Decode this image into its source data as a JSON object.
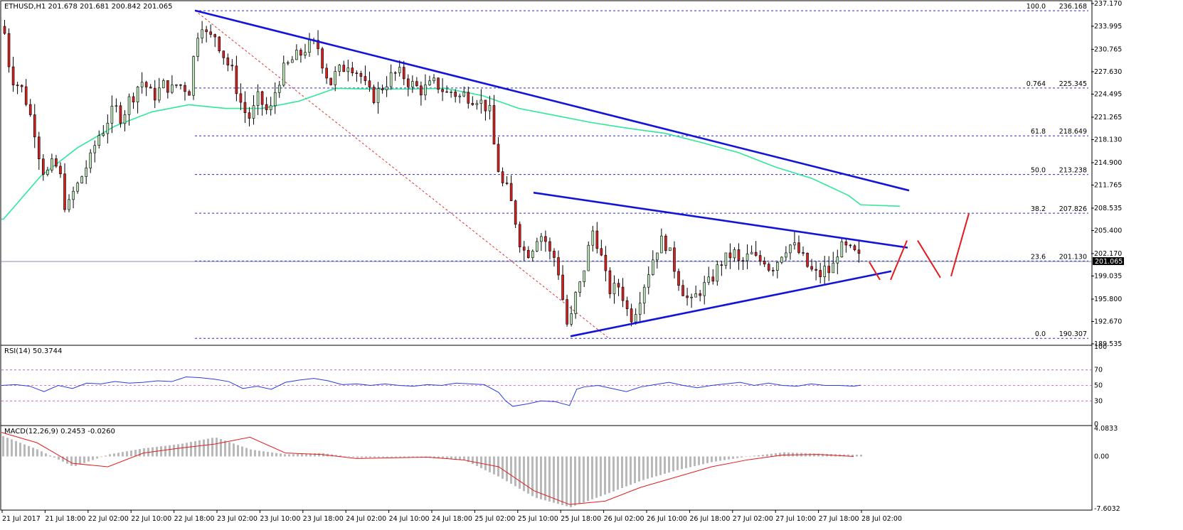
{
  "main_panel": {
    "title": "ETHUSD,H1  201.678 201.681 200.842 201.065",
    "current_price": "201.065",
    "current_price_value": 201.065
  },
  "rsi_panel": {
    "title": "RSI(14) 50.3744",
    "levels": [
      30,
      50,
      70
    ]
  },
  "macd_panel": {
    "title": "MACD(12,26,9) 0.2453 -0.0260"
  },
  "colors": {
    "bull_candle": "#b7e3b4",
    "bear_candle": "#d42222",
    "ma_line": "#2ee89a",
    "trendline": "#1414d8",
    "fib_line": "#2a2ad2",
    "fib_diagonal": "#e03030",
    "scenario": "#e21c1c",
    "rsi_line": "#2a3ce0",
    "level_line": "#c050c0",
    "macd_hist": "#b9b9b9",
    "macd_signal": "#e21c1c"
  },
  "chart_data": [
    {
      "type": "candlestick",
      "symbol": "ETHUSD",
      "timeframe": "H1",
      "ylim": [
        189.535,
        237.17
      ],
      "y_ticks": [
        "237.170",
        "233.995",
        "230.765",
        "227.630",
        "224.495",
        "221.265",
        "218.130",
        "214.900",
        "211.765",
        "208.535",
        "205.400",
        "202.170",
        "199.035",
        "195.800",
        "192.670",
        "189.535"
      ],
      "x_ticks": [
        "21 Jul 2017",
        "21 Jul 18:00",
        "22 Jul 02:00",
        "22 Jul 10:00",
        "22 Jul 18:00",
        "23 Jul 02:00",
        "23 Jul 10:00",
        "23 Jul 18:00",
        "24 Jul 02:00",
        "24 Jul 10:00",
        "24 Jul 18:00",
        "25 Jul 02:00",
        "25 Jul 10:00",
        "25 Jul 18:00",
        "26 Jul 02:00",
        "26 Jul 10:00",
        "26 Jul 18:00",
        "27 Jul 02:00",
        "27 Jul 10:00",
        "27 Jul 18:00",
        "28 Jul 02:00"
      ],
      "fibonacci": [
        {
          "label": "100.0",
          "value": 236.168,
          "value_text": "236.168"
        },
        {
          "label": "0.764",
          "value": 225.345,
          "value_text": "225.345"
        },
        {
          "label": "61.8",
          "value": 218.649,
          "value_text": "218.649"
        },
        {
          "label": "50.0",
          "value": 213.238,
          "value_text": "213.238"
        },
        {
          "label": "38.2",
          "value": 207.826,
          "value_text": "207.826"
        },
        {
          "label": "23.6",
          "value": 201.13,
          "value_text": "201.130"
        },
        {
          "label": "0.0",
          "value": 190.307,
          "value_text": "190.307"
        }
      ],
      "close_path": [
        [
          0,
          233.0
        ],
        [
          5,
          227.0
        ],
        [
          10,
          226.0
        ],
        [
          15,
          225.0
        ],
        [
          20,
          222.0
        ],
        [
          25,
          219.0
        ],
        [
          30,
          214.0
        ],
        [
          35,
          213.5
        ],
        [
          40,
          215.0
        ],
        [
          45,
          213.0
        ],
        [
          50,
          207.8
        ],
        [
          55,
          210.5
        ],
        [
          60,
          212.0
        ],
        [
          65,
          214.0
        ],
        [
          70,
          215.5
        ],
        [
          75,
          218.5
        ],
        [
          80,
          219.5
        ],
        [
          85,
          221.5
        ],
        [
          90,
          222.5
        ],
        [
          95,
          221.0
        ],
        [
          100,
          223.5
        ],
        [
          105,
          224.5
        ],
        [
          110,
          226.5
        ],
        [
          115,
          225.5
        ],
        [
          120,
          224.0
        ],
        [
          125,
          225.0
        ],
        [
          130,
          226.0
        ],
        [
          135,
          225.0
        ],
        [
          140,
          226.0
        ],
        [
          145,
          225.5
        ],
        [
          150,
          225.0
        ],
        [
          155,
          232.5
        ],
        [
          160,
          234.5
        ],
        [
          165,
          232.0
        ],
        [
          170,
          233.0
        ],
        [
          175,
          231.0
        ],
        [
          180,
          229.0
        ],
        [
          185,
          227.5
        ],
        [
          190,
          224.0
        ],
        [
          195,
          222.0
        ],
        [
          200,
          221.0
        ],
        [
          205,
          224.0
        ],
        [
          210,
          223.0
        ],
        [
          215,
          221.5
        ],
        [
          220,
          225.0
        ],
        [
          225,
          227.5
        ],
        [
          230,
          228.5
        ],
        [
          235,
          229.5
        ],
        [
          240,
          230.0
        ],
        [
          245,
          231.0
        ],
        [
          250,
          231.5
        ],
        [
          255,
          231.0
        ],
        [
          260,
          228.0
        ],
        [
          265,
          226.0
        ],
        [
          270,
          227.5
        ],
        [
          275,
          228.0
        ],
        [
          280,
          229.0
        ],
        [
          285,
          228.0
        ],
        [
          290,
          227.0
        ],
        [
          295,
          225.0
        ],
        [
          300,
          224.0
        ],
        [
          305,
          225.0
        ],
        [
          310,
          226.0
        ],
        [
          315,
          227.0
        ],
        [
          320,
          227.5
        ],
        [
          325,
          227.0
        ],
        [
          330,
          226.0
        ],
        [
          335,
          225.5
        ],
        [
          340,
          225.0
        ],
        [
          345,
          225.5
        ],
        [
          350,
          226.0
        ],
        [
          355,
          225.5
        ],
        [
          360,
          224.5
        ],
        [
          365,
          225.0
        ],
        [
          370,
          224.0
        ],
        [
          375,
          224.5
        ],
        [
          380,
          224.0
        ],
        [
          385,
          224.0
        ],
        [
          390,
          223.0
        ],
        [
          395,
          222.5
        ],
        [
          400,
          216.0
        ],
        [
          405,
          212.0
        ],
        [
          410,
          211.0
        ],
        [
          415,
          208.0
        ],
        [
          420,
          204.0
        ],
        [
          425,
          202.0
        ],
        [
          430,
          203.0
        ],
        [
          435,
          205.0
        ],
        [
          440,
          204.5
        ],
        [
          445,
          202.0
        ],
        [
          450,
          201.5
        ],
        [
          455,
          196.0
        ],
        [
          460,
          191.0
        ],
        [
          465,
          196.0
        ],
        [
          470,
          198.0
        ],
        [
          475,
          202.0
        ],
        [
          480,
          205.5
        ],
        [
          485,
          203.0
        ],
        [
          490,
          199.0
        ],
        [
          495,
          196.5
        ],
        [
          500,
          198.0
        ],
        [
          505,
          196.0
        ],
        [
          510,
          193.0
        ],
        [
          515,
          194.5
        ],
        [
          520,
          197.0
        ],
        [
          525,
          199.5
        ],
        [
          530,
          202.0
        ],
        [
          535,
          204.0
        ],
        [
          540,
          203.5
        ],
        [
          545,
          201.0
        ],
        [
          550,
          198.5
        ],
        [
          555,
          196.5
        ],
        [
          560,
          195.0
        ],
        [
          565,
          196.5
        ],
        [
          570,
          197.5
        ],
        [
          575,
          198.0
        ],
        [
          580,
          199.5
        ],
        [
          585,
          201.0
        ],
        [
          590,
          201.5
        ],
        [
          595,
          202.5
        ],
        [
          600,
          200.5
        ],
        [
          605,
          201.5
        ],
        [
          610,
          202.0
        ],
        [
          615,
          201.0
        ],
        [
          620,
          201.5
        ],
        [
          625,
          200.0
        ],
        [
          630,
          201.0
        ],
        [
          635,
          202.5
        ],
        [
          640,
          203.5
        ],
        [
          645,
          203.0
        ],
        [
          650,
          202.0
        ],
        [
          655,
          200.5
        ],
        [
          660,
          199.5
        ],
        [
          665,
          199.0
        ],
        [
          670,
          200.0
        ],
        [
          675,
          199.5
        ],
        [
          680,
          202.5
        ],
        [
          685,
          203.0
        ],
        [
          690,
          202.5
        ],
        [
          695,
          202.0
        ],
        [
          700,
          201.065
        ]
      ],
      "moving_average_path": [
        [
          0,
          207.0
        ],
        [
          30,
          213.0
        ],
        [
          60,
          217.0
        ],
        [
          90,
          220.0
        ],
        [
          120,
          222.0
        ],
        [
          150,
          223.0
        ],
        [
          180,
          222.5
        ],
        [
          210,
          222.5
        ],
        [
          240,
          223.5
        ],
        [
          270,
          225.3
        ],
        [
          300,
          225.2
        ],
        [
          330,
          225.2
        ],
        [
          360,
          225.3
        ],
        [
          390,
          224.3
        ],
        [
          420,
          222.5
        ],
        [
          450,
          221.5
        ],
        [
          480,
          220.5
        ],
        [
          510,
          219.7
        ],
        [
          540,
          219.0
        ],
        [
          570,
          217.7
        ],
        [
          600,
          216.3
        ],
        [
          630,
          214.3
        ],
        [
          660,
          212.7
        ],
        [
          690,
          210.3
        ],
        [
          700,
          209.0
        ]
      ],
      "trendlines": [
        {
          "name": "upper-falling",
          "from": [
            0,
            236.2
          ],
          "to": [
            701,
            211.0
          ]
        },
        {
          "name": "triangle-top",
          "from": [
            340,
            210.7
          ],
          "to": [
            701,
            203.0
          ]
        },
        {
          "name": "triangle-bottom",
          "from": [
            436,
            190.6
          ],
          "to": [
            687,
            199.7
          ]
        }
      ],
      "fib_diagonal": {
        "from": [
          0,
          236.2
        ],
        "to": [
          436,
          190.3
        ]
      },
      "scenario_path": [
        [
          [
            680,
            201.0
          ],
          [
            686,
            198.5
          ]
        ],
        [
          [
            690,
            198.5
          ],
          [
            699,
            204.0
          ]
        ],
        [
          [
            704,
            204.0
          ],
          [
            713,
            198.8
          ]
        ],
        [
          [
            717,
            199.0
          ],
          [
            726,
            207.8
          ]
        ]
      ]
    },
    {
      "type": "line",
      "name": "RSI(14)",
      "ylim": [
        0,
        100
      ],
      "y_ticks": [
        0,
        30,
        50,
        70,
        100
      ],
      "values": [
        [
          0,
          50
        ],
        [
          20,
          51
        ],
        [
          40,
          49
        ],
        [
          60,
          42
        ],
        [
          80,
          50
        ],
        [
          100,
          46
        ],
        [
          120,
          53
        ],
        [
          140,
          52
        ],
        [
          160,
          55
        ],
        [
          180,
          53
        ],
        [
          200,
          54
        ],
        [
          220,
          56
        ],
        [
          240,
          55
        ],
        [
          260,
          61
        ],
        [
          280,
          60
        ],
        [
          300,
          58
        ],
        [
          320,
          55
        ],
        [
          340,
          46
        ],
        [
          360,
          49
        ],
        [
          380,
          45
        ],
        [
          400,
          54
        ],
        [
          420,
          57
        ],
        [
          440,
          59
        ],
        [
          460,
          56
        ],
        [
          480,
          51
        ],
        [
          500,
          52
        ],
        [
          520,
          50
        ],
        [
          540,
          52
        ],
        [
          560,
          50
        ],
        [
          580,
          49
        ],
        [
          600,
          51
        ],
        [
          620,
          50
        ],
        [
          640,
          53
        ],
        [
          660,
          52
        ],
        [
          680,
          51
        ],
        [
          700,
          41
        ],
        [
          710,
          30
        ],
        [
          720,
          23
        ],
        [
          740,
          26
        ],
        [
          760,
          30
        ],
        [
          780,
          29
        ],
        [
          800,
          24
        ],
        [
          810,
          45
        ],
        [
          820,
          48
        ],
        [
          840,
          50
        ],
        [
          860,
          46
        ],
        [
          880,
          42
        ],
        [
          900,
          48
        ],
        [
          920,
          51
        ],
        [
          940,
          54
        ],
        [
          960,
          50
        ],
        [
          980,
          47
        ],
        [
          1000,
          50
        ],
        [
          1020,
          52
        ],
        [
          1040,
          54
        ],
        [
          1060,
          50
        ],
        [
          1080,
          53
        ],
        [
          1100,
          50
        ],
        [
          1120,
          49
        ],
        [
          1140,
          52
        ],
        [
          1160,
          50
        ],
        [
          1180,
          50
        ],
        [
          1200,
          49
        ],
        [
          1210,
          50.37
        ]
      ]
    },
    {
      "type": "bar+line",
      "name": "MACD(12,26,9)",
      "ylim": [
        -7.6032,
        4.0833
      ],
      "y_ticks": [
        "4.0833",
        "0.00",
        "-7.6032"
      ],
      "histogram": [
        [
          0,
          3.0
        ],
        [
          50,
          1.0
        ],
        [
          100,
          -1.5
        ],
        [
          150,
          0.3
        ],
        [
          200,
          1.2
        ],
        [
          250,
          1.8
        ],
        [
          300,
          2.8
        ],
        [
          350,
          1.0
        ],
        [
          400,
          0.3
        ],
        [
          450,
          0.5
        ],
        [
          500,
          -0.2
        ],
        [
          550,
          -0.1
        ],
        [
          600,
          -0.2
        ],
        [
          650,
          -0.5
        ],
        [
          700,
          -3.0
        ],
        [
          750,
          -6.0
        ],
        [
          800,
          -7.4
        ],
        [
          850,
          -5.5
        ],
        [
          900,
          -3.5
        ],
        [
          950,
          -2.0
        ],
        [
          1000,
          -0.8
        ],
        [
          1050,
          0.0
        ],
        [
          1100,
          0.6
        ],
        [
          1150,
          0.4
        ],
        [
          1200,
          0.25
        ]
      ],
      "signal": [
        [
          0,
          3.5
        ],
        [
          50,
          2.0
        ],
        [
          100,
          -1.0
        ],
        [
          150,
          -1.5
        ],
        [
          200,
          0.5
        ],
        [
          250,
          1.2
        ],
        [
          300,
          1.8
        ],
        [
          350,
          2.8
        ],
        [
          400,
          0.5
        ],
        [
          450,
          0.3
        ],
        [
          500,
          -0.3
        ],
        [
          550,
          -0.2
        ],
        [
          600,
          -0.1
        ],
        [
          650,
          -0.5
        ],
        [
          700,
          -1.5
        ],
        [
          750,
          -5.0
        ],
        [
          800,
          -7.0
        ],
        [
          850,
          -6.5
        ],
        [
          900,
          -4.5
        ],
        [
          950,
          -3.0
        ],
        [
          1000,
          -1.5
        ],
        [
          1050,
          -0.5
        ],
        [
          1100,
          0.2
        ],
        [
          1150,
          0.3
        ],
        [
          1200,
          0.0
        ]
      ]
    }
  ]
}
